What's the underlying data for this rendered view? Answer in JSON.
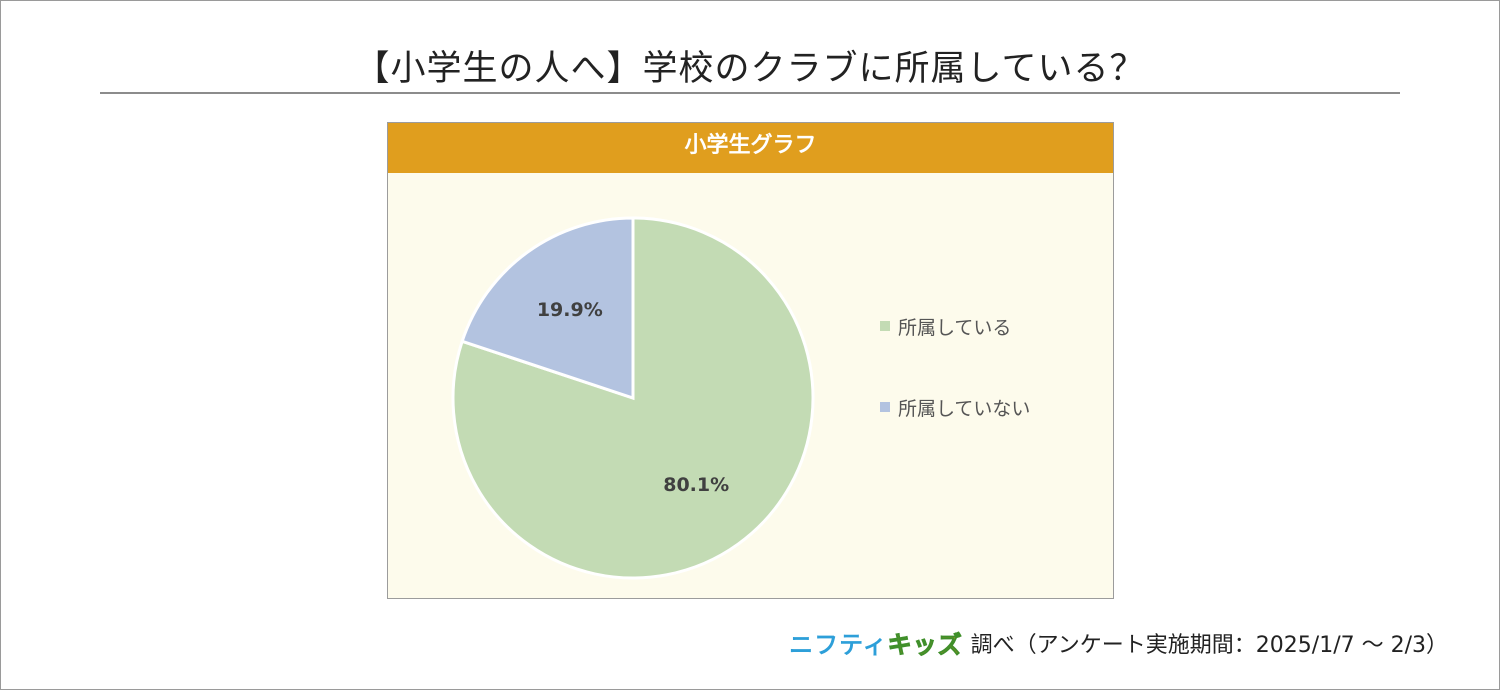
{
  "page_title": "【小学生の人へ】学校のクラブに所属している？",
  "footer": {
    "brand_part1": "ニフティ",
    "brand_part2": "キッズ",
    "text": "調べ（アンケート実施期間：2025/1/7 ～ 2/3）"
  },
  "colors": {
    "header": "#e09e1e",
    "plot_bg": "#fdfbec"
  },
  "chart_data": {
    "type": "pie",
    "title": "小学生グラフ",
    "legend_position": "right",
    "slices": [
      {
        "label": "所属している",
        "value": 80.1,
        "display": "80.1%",
        "color": "#c3dbb4"
      },
      {
        "label": "所属していない",
        "value": 19.9,
        "display": "19.9%",
        "color": "#b3c3e0"
      }
    ]
  }
}
